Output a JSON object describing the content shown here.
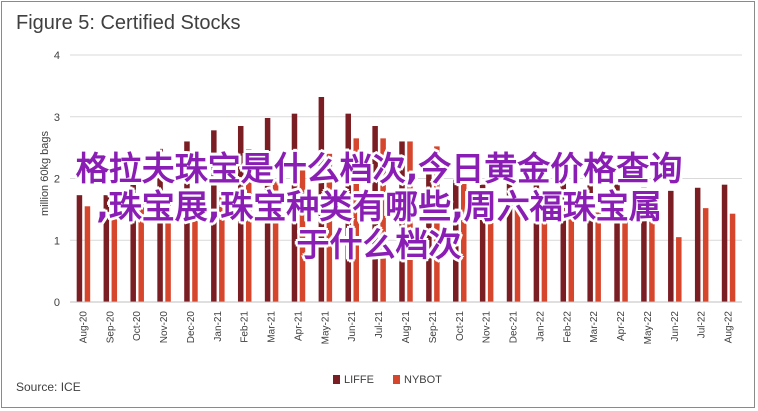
{
  "title": "Figure 5: Certified Stocks",
  "source": "Source: ICE",
  "overlay": {
    "line1": "格拉夫珠宝是什么档次,今日黄金价格查询",
    "line2": ",珠宝展,珠宝种类有哪些,周六福珠宝属",
    "line3": "于什么档次"
  },
  "colors": {
    "LIFFE": "#7b1e23",
    "NYBOT": "#d6462c",
    "axis": "#404040",
    "grid": "#d9d9d9"
  },
  "chart_data": {
    "type": "bar",
    "title": "Figure 5: Certified Stocks",
    "ylabel": "million 60kg bags",
    "ylim": [
      0,
      4
    ],
    "yticks": [
      0,
      1,
      2,
      3,
      4
    ],
    "grid": true,
    "legend_position": "bottom-center",
    "categories": [
      "Aug-20",
      "Sep-20",
      "Oct-20",
      "Nov-20",
      "Dec-20",
      "Jan-21",
      "Feb-21",
      "Mar-21",
      "Apr-21",
      "May-21",
      "Jun-21",
      "Jul-21",
      "Aug-21",
      "Sep-21",
      "Oct-21",
      "Nov-21",
      "Dec-21",
      "Jan-22",
      "Feb-22",
      "Mar-22",
      "Apr-22",
      "May-22",
      "Jun-22",
      "Jul-22",
      "Aug-22"
    ],
    "series": [
      {
        "name": "LIFFE",
        "values": [
          1.73,
          1.73,
          2.08,
          2.48,
          2.6,
          2.78,
          2.85,
          2.98,
          3.05,
          3.32,
          3.05,
          2.85,
          2.6,
          2.17,
          1.98,
          1.9,
          1.98,
          1.98,
          2.05,
          1.9,
          1.9,
          1.85,
          1.8,
          1.85,
          1.9
        ]
      },
      {
        "name": "NYBOT",
        "values": [
          1.55,
          1.5,
          1.6,
          1.8,
          1.75,
          1.8,
          2.47,
          1.95,
          2.13,
          2.4,
          2.65,
          2.65,
          2.6,
          2.52,
          2.02,
          1.8,
          1.7,
          1.7,
          1.6,
          1.45,
          1.4,
          1.3,
          1.05,
          1.52,
          1.43
        ]
      }
    ]
  }
}
